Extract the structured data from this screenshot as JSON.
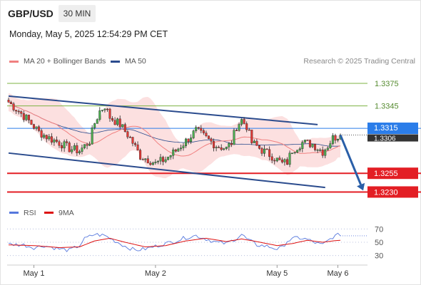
{
  "header": {
    "symbol": "GBP/USD",
    "timeframe": "30 MIN",
    "datetime": "Monday, May 5, 2025 12:54:29 PM CET"
  },
  "legend": {
    "ma20_bb": {
      "label": "MA 20 + Bollinger Bands",
      "color": "#f08080"
    },
    "ma50": {
      "label": "MA 50",
      "color": "#2a4b8d"
    },
    "rsi": {
      "label": "RSI",
      "color": "#5577dd"
    },
    "rsi_ma": {
      "label": "9MA",
      "color": "#dd1111"
    }
  },
  "copyright": "Research © 2025 Trading Central",
  "chart_data": {
    "type": "candlestick",
    "ylim": [
      1.322,
      1.3395
    ],
    "x_ticks": [
      {
        "label": "May 1",
        "bar": 10
      },
      {
        "label": "May 2",
        "bar": 58
      },
      {
        "label": "May 5",
        "bar": 106
      },
      {
        "label": "May 6",
        "bar": 130
      }
    ],
    "last_price": {
      "value": 1.3306,
      "label": "1.3306",
      "color": "#333333"
    },
    "levels": [
      {
        "value": 1.3375,
        "label": "1.3375",
        "kind": "resistance",
        "color": "#7cb342"
      },
      {
        "value": 1.3345,
        "label": "1.3345",
        "kind": "resistance",
        "color": "#7cb342"
      },
      {
        "value": 1.3315,
        "label": "1.3315",
        "kind": "pivot",
        "color": "#2b7de9"
      },
      {
        "value": 1.3255,
        "label": "1.3255",
        "kind": "support",
        "color": "#e31e24"
      },
      {
        "value": 1.323,
        "label": "1.3230",
        "kind": "support",
        "color": "#e31e24"
      }
    ],
    "channel": {
      "upper": [
        [
          0,
          1.3358
        ],
        [
          122,
          1.332
        ]
      ],
      "lower": [
        [
          0,
          1.3282
        ],
        [
          125,
          1.3236
        ]
      ]
    },
    "projection": {
      "from": [
        131,
        1.3306
      ],
      "to": [
        140,
        1.3232
      ]
    },
    "price_path": [
      [
        0,
        1.335
      ],
      [
        4,
        1.3338
      ],
      [
        8,
        1.3325
      ],
      [
        12,
        1.331
      ],
      [
        16,
        1.3302
      ],
      [
        20,
        1.3296
      ],
      [
        24,
        1.3288
      ],
      [
        28,
        1.3285
      ],
      [
        32,
        1.3298
      ],
      [
        34,
        1.3322
      ],
      [
        36,
        1.3338
      ],
      [
        38,
        1.3345
      ],
      [
        40,
        1.333
      ],
      [
        44,
        1.332
      ],
      [
        48,
        1.3302
      ],
      [
        52,
        1.3278
      ],
      [
        56,
        1.3272
      ],
      [
        58,
        1.3268
      ],
      [
        62,
        1.3274
      ],
      [
        66,
        1.3285
      ],
      [
        70,
        1.3298
      ],
      [
        74,
        1.3312
      ],
      [
        78,
        1.3302
      ],
      [
        82,
        1.3292
      ],
      [
        86,
        1.3288
      ],
      [
        88,
        1.3296
      ],
      [
        90,
        1.3318
      ],
      [
        92,
        1.3326
      ],
      [
        94,
        1.3318
      ],
      [
        96,
        1.3296
      ],
      [
        100,
        1.3286
      ],
      [
        104,
        1.3278
      ],
      [
        108,
        1.3268
      ],
      [
        110,
        1.327
      ],
      [
        112,
        1.3286
      ],
      [
        116,
        1.3296
      ],
      [
        120,
        1.3294
      ],
      [
        124,
        1.3284
      ],
      [
        126,
        1.3292
      ],
      [
        128,
        1.3302
      ],
      [
        131,
        1.3306
      ]
    ],
    "rsi": {
      "ylim": [
        20,
        80
      ],
      "levels": [
        70,
        50,
        30
      ],
      "level_labels": [
        "70",
        "50",
        "30"
      ],
      "path": [
        [
          0,
          47
        ],
        [
          6,
          46
        ],
        [
          10,
          42
        ],
        [
          14,
          45
        ],
        [
          20,
          40
        ],
        [
          24,
          38
        ],
        [
          28,
          45
        ],
        [
          30,
          55
        ],
        [
          34,
          62
        ],
        [
          38,
          60
        ],
        [
          42,
          52
        ],
        [
          46,
          44
        ],
        [
          50,
          38
        ],
        [
          54,
          40
        ],
        [
          58,
          44
        ],
        [
          62,
          48
        ],
        [
          66,
          52
        ],
        [
          70,
          57
        ],
        [
          74,
          60
        ],
        [
          78,
          55
        ],
        [
          82,
          50
        ],
        [
          86,
          48
        ],
        [
          90,
          56
        ],
        [
          92,
          62
        ],
        [
          94,
          55
        ],
        [
          98,
          46
        ],
        [
          102,
          44
        ],
        [
          106,
          40
        ],
        [
          108,
          42
        ],
        [
          110,
          52
        ],
        [
          114,
          57
        ],
        [
          118,
          54
        ],
        [
          122,
          48
        ],
        [
          124,
          46
        ],
        [
          126,
          52
        ],
        [
          128,
          58
        ],
        [
          131,
          62
        ]
      ],
      "ma_path": [
        [
          0,
          46
        ],
        [
          10,
          45
        ],
        [
          20,
          42
        ],
        [
          28,
          43
        ],
        [
          34,
          52
        ],
        [
          40,
          56
        ],
        [
          46,
          50
        ],
        [
          54,
          43
        ],
        [
          62,
          45
        ],
        [
          70,
          52
        ],
        [
          78,
          56
        ],
        [
          86,
          51
        ],
        [
          92,
          55
        ],
        [
          98,
          51
        ],
        [
          106,
          45
        ],
        [
          112,
          48
        ],
        [
          118,
          53
        ],
        [
          124,
          50
        ],
        [
          128,
          52
        ],
        [
          131,
          53
        ]
      ]
    }
  }
}
